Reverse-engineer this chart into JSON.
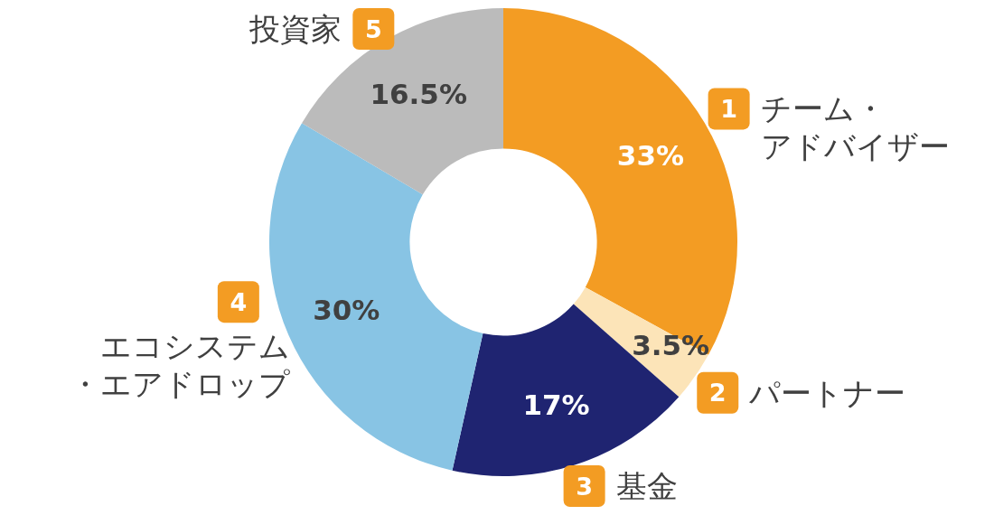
{
  "chart_data": {
    "type": "donut",
    "categories": [
      "チーム・アドバイザー",
      "パートナー",
      "基金",
      "エコシステム・エアドロップ",
      "投資家"
    ],
    "values": [
      33,
      3.5,
      17,
      30,
      16.5
    ],
    "value_labels": [
      "33%",
      "3.5%",
      "17%",
      "30%",
      "16.5%"
    ],
    "colors": [
      "#f39c23",
      "#fce4b8",
      "#1f2471",
      "#88c4e4",
      "#bbbbbb"
    ],
    "annotations": [
      "1",
      "2",
      "3",
      "4",
      "5"
    ]
  }
}
